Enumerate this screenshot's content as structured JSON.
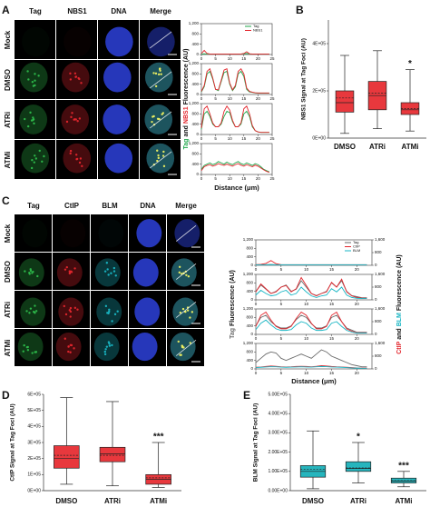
{
  "panel_labels": [
    "A",
    "B",
    "C",
    "D",
    "E"
  ],
  "panel_a_images": {
    "columns": [
      "Tag",
      "NBS1",
      "DNA",
      "Merge"
    ],
    "colors": [
      "#2db84a",
      "#e3262d",
      "#2f45e8",
      "#f28c28"
    ],
    "rows": [
      "Mock",
      "DMSO",
      "ATRi",
      "ATMi"
    ]
  },
  "panel_c_images": {
    "columns": [
      "Tag",
      "CtIP",
      "BLM",
      "DNA",
      "Merge"
    ],
    "colors": [
      "#2db84a",
      "#e3262d",
      "#19b6c4",
      "#2f45e8",
      "#f28c28"
    ],
    "rows": [
      "Mock",
      "DMSO",
      "ATRi",
      "ATMi"
    ]
  },
  "chart_data": [
    {
      "type": "line",
      "ylabel_parts": [
        "Tag",
        "and",
        "NBS1",
        "Fluorescence (AU)"
      ],
      "xlabel": "Distance (μm)",
      "x": [
        0,
        1,
        2,
        3,
        4,
        5,
        6,
        7,
        8,
        9,
        10,
        11,
        12,
        13,
        14,
        15,
        16,
        17,
        18,
        19,
        20,
        21,
        22,
        23,
        24
      ],
      "xlim": [
        0,
        25
      ],
      "xticks": [
        0,
        5,
        10,
        15,
        20,
        25
      ],
      "ylim": [
        0,
        1200
      ],
      "yticks": [
        0,
        400,
        800,
        {
          "value": 1200,
          "label": "1,200"
        }
      ],
      "series": [
        {
          "name": "Tag",
          "color": "#1fa64a",
          "rows": [
            [
              20,
              30,
              20,
              20,
              20,
              20,
              20,
              20,
              20,
              20,
              20,
              20,
              20,
              20,
              20,
              30,
              40,
              20,
              20,
              20,
              20,
              20,
              20,
              20,
              20
            ],
            [
              100,
              300,
              800,
              900,
              600,
              200,
              150,
              500,
              850,
              900,
              400,
              150,
              300,
              800,
              900,
              700,
              200,
              100,
              80,
              60,
              50,
              50,
              50,
              50,
              50
            ],
            [
              200,
              800,
              900,
              700,
              400,
              300,
              300,
              400,
              700,
              900,
              850,
              500,
              300,
              300,
              400,
              800,
              900,
              700,
              300,
              150,
              100,
              80,
              80,
              80,
              80
            ],
            [
              200,
              350,
              400,
              450,
              380,
              420,
              500,
              450,
              400,
              480,
              420,
              380,
              450,
              500,
              420,
              380,
              450,
              400,
              350,
              420,
              380,
              300,
              200,
              150,
              100
            ]
          ]
        },
        {
          "name": "NBS1",
          "color": "#e3262d",
          "rows": [
            [
              40,
              160,
              40,
              20,
              20,
              20,
              20,
              20,
              20,
              20,
              20,
              20,
              20,
              20,
              20,
              40,
              110,
              30,
              20,
              20,
              20,
              20,
              20,
              20,
              20
            ],
            [
              120,
              350,
              900,
              1000,
              650,
              200,
              180,
              550,
              950,
              1000,
              450,
              180,
              350,
              900,
              1000,
              800,
              250,
              120,
              90,
              70,
              60,
              60,
              60,
              60,
              60
            ],
            [
              250,
              1000,
              1100,
              800,
              450,
              300,
              300,
              450,
              900,
              1100,
              950,
              550,
              300,
              300,
              450,
              1000,
              1100,
              800,
              350,
              150,
              100,
              80,
              80,
              80,
              80
            ],
            [
              150,
              300,
              350,
              380,
              320,
              360,
              420,
              380,
              350,
              400,
              360,
              320,
              380,
              420,
              360,
              320,
              380,
              340,
              300,
              360,
              320,
              250,
              180,
              120,
              80
            ]
          ]
        }
      ]
    },
    {
      "type": "box",
      "ylabel": "NBS1 Signal at Tag Foci (AU)",
      "categories": [
        "DMSO",
        "ATRi",
        "ATMi"
      ],
      "color": "#e8383d",
      "ylim": [
        0,
        500000
      ],
      "yticks": [
        {
          "value": 0,
          "label": "0E+00"
        },
        {
          "value": 200000,
          "label": "2E+05"
        },
        {
          "value": 400000,
          "label": "4E+05"
        }
      ],
      "boxes": [
        {
          "whisker_low": 20000,
          "q1": 110000,
          "median": 150000,
          "mean": 170000,
          "q3": 200000,
          "whisker_high": 350000
        },
        {
          "whisker_low": 40000,
          "q1": 120000,
          "median": 180000,
          "mean": 190000,
          "q3": 240000,
          "whisker_high": 370000
        },
        {
          "whisker_low": 30000,
          "q1": 100000,
          "median": 120000,
          "mean": 125000,
          "q3": 150000,
          "whisker_high": 290000
        }
      ],
      "annotations": [
        null,
        null,
        "*"
      ]
    },
    {
      "type": "line",
      "ylabel_parts": [
        "Tag",
        "Fluorescence (AU)"
      ],
      "y2label_parts": [
        "CtIP",
        "and",
        "BLM",
        "Fluorescence (AU)"
      ],
      "xlabel": "Distance (μm)",
      "x": [
        0,
        1,
        2,
        3,
        4,
        5,
        6,
        7,
        8,
        9,
        10,
        11,
        12,
        13,
        14,
        15,
        16,
        17,
        18,
        19,
        20,
        21,
        22
      ],
      "xlim": [
        0,
        23
      ],
      "xticks": [
        0,
        5,
        10,
        15,
        20
      ],
      "ylim": [
        0,
        1200
      ],
      "yticks": [
        0,
        400,
        800,
        {
          "value": 1200,
          "label": "1,200"
        }
      ],
      "y2lim": [
        0,
        1600
      ],
      "y2ticks": [
        0,
        800,
        {
          "value": 1600,
          "label": "1,600"
        }
      ],
      "series": [
        {
          "name": "Tag",
          "color": "#6b6b6b",
          "rows": [
            [
              30,
              30,
              30,
              40,
              30,
              30,
              30,
              30,
              30,
              30,
              30,
              30,
              30,
              30,
              30,
              30,
              30,
              30,
              30,
              30,
              30,
              30,
              30
            ],
            [
              400,
              700,
              500,
              300,
              400,
              600,
              700,
              400,
              500,
              900,
              600,
              300,
              200,
              300,
              400,
              800,
              600,
              900,
              400,
              200,
              150,
              100,
              100
            ],
            [
              400,
              800,
              900,
              600,
              400,
              300,
              300,
              400,
              700,
              900,
              800,
              500,
              300,
              300,
              400,
              800,
              900,
              600,
              300,
              200,
              100,
              100,
              100
            ],
            [
              300,
              500,
              700,
              800,
              750,
              500,
              400,
              500,
              600,
              700,
              600,
              500,
              700,
              900,
              800,
              600,
              500,
              400,
              300,
              200,
              150,
              100,
              100
            ]
          ]
        },
        {
          "name": "CtIP",
          "color": "#e3262d",
          "axis": "y2",
          "rows": [
            [
              40,
              60,
              120,
              300,
              100,
              40,
              30,
              30,
              30,
              30,
              30,
              30,
              30,
              30,
              30,
              30,
              30,
              30,
              30,
              30,
              30,
              30,
              30
            ],
            [
              500,
              1000,
              700,
              400,
              500,
              800,
              900,
              500,
              700,
              1400,
              900,
              400,
              250,
              400,
              500,
              1100,
              800,
              1300,
              500,
              250,
              150,
              100,
              100
            ],
            [
              500,
              1200,
              1400,
              900,
              500,
              350,
              350,
              500,
              1000,
              1400,
              1200,
              700,
              350,
              350,
              500,
              1200,
              1400,
              800,
              350,
              200,
              100,
              100,
              100
            ],
            [
              100,
              120,
              150,
              180,
              160,
              130,
              120,
              130,
              150,
              160,
              150,
              130,
              160,
              200,
              180,
              150,
              130,
              120,
              100,
              80,
              60,
              50,
              50
            ]
          ]
        },
        {
          "name": "BLM",
          "color": "#19b6c4",
          "axis": "y2",
          "rows": [
            [
              30,
              30,
              30,
              40,
              30,
              30,
              30,
              30,
              30,
              30,
              30,
              30,
              30,
              30,
              30,
              30,
              30,
              30,
              30,
              30,
              30,
              30,
              30
            ],
            [
              300,
              600,
              400,
              250,
              300,
              500,
              600,
              300,
              400,
              800,
              500,
              250,
              150,
              250,
              300,
              700,
              500,
              800,
              300,
              150,
              100,
              80,
              80
            ],
            [
              300,
              700,
              900,
              600,
              350,
              250,
              250,
              300,
              600,
              800,
              700,
              400,
              250,
              250,
              300,
              700,
              800,
              500,
              250,
              150,
              80,
              80,
              80
            ],
            [
              80,
              100,
              120,
              140,
              130,
              110,
              100,
              110,
              120,
              130,
              120,
              110,
              130,
              150,
              140,
              120,
              110,
              100,
              80,
              60,
              50,
              40,
              40
            ]
          ]
        }
      ]
    },
    {
      "type": "box",
      "ylabel": "CtIP Signal at Tag Foci (AU)",
      "categories": [
        "DMSO",
        "ATRi",
        "ATMi"
      ],
      "color": "#e8383d",
      "ylim": [
        0,
        600000
      ],
      "yticks": [
        {
          "value": 0,
          "label": "0E+00"
        },
        {
          "value": 100000,
          "label": "1E+05"
        },
        {
          "value": 200000,
          "label": "2E+05"
        },
        {
          "value": 300000,
          "label": "3E+05"
        },
        {
          "value": 400000,
          "label": "4E+05"
        },
        {
          "value": 500000,
          "label": "5E+05"
        },
        {
          "value": 600000,
          "label": "6E+05"
        }
      ],
      "boxes": [
        {
          "whisker_low": 40000,
          "q1": 140000,
          "median": 200000,
          "mean": 220000,
          "q3": 280000,
          "whisker_high": 580000
        },
        {
          "whisker_low": 30000,
          "q1": 180000,
          "median": 230000,
          "mean": 220000,
          "q3": 270000,
          "whisker_high": 555000
        },
        {
          "whisker_low": 20000,
          "q1": 40000,
          "median": 70000,
          "mean": 80000,
          "q3": 100000,
          "whisker_high": 300000
        }
      ],
      "annotations": [
        null,
        null,
        "***"
      ]
    },
    {
      "type": "box",
      "ylabel": "BLM Signal at Tag Foci (AU)",
      "categories": [
        "DMSO",
        "ATRi",
        "ATMi"
      ],
      "color": "#26b5bd",
      "ylim": [
        0,
        500000
      ],
      "yticks": [
        {
          "value": 0,
          "label": "0.00E+00"
        },
        {
          "value": 100000,
          "label": "1.00E+05"
        },
        {
          "value": 200000,
          "label": "2.00E+05"
        },
        {
          "value": 300000,
          "label": "3.00E+05"
        },
        {
          "value": 400000,
          "label": "4.00E+05"
        },
        {
          "value": 500000,
          "label": "5.00E+05"
        }
      ],
      "boxes": [
        {
          "whisker_low": 10000,
          "q1": 70000,
          "median": 100000,
          "mean": 110000,
          "q3": 130000,
          "whisker_high": 310000
        },
        {
          "whisker_low": 40000,
          "q1": 100000,
          "median": 115000,
          "mean": 118000,
          "q3": 150000,
          "whisker_high": 250000
        },
        {
          "whisker_low": 20000,
          "q1": 40000,
          "median": 50000,
          "mean": 52000,
          "q3": 65000,
          "whisker_high": 100000
        }
      ],
      "annotations": [
        null,
        "*",
        "***"
      ]
    }
  ]
}
